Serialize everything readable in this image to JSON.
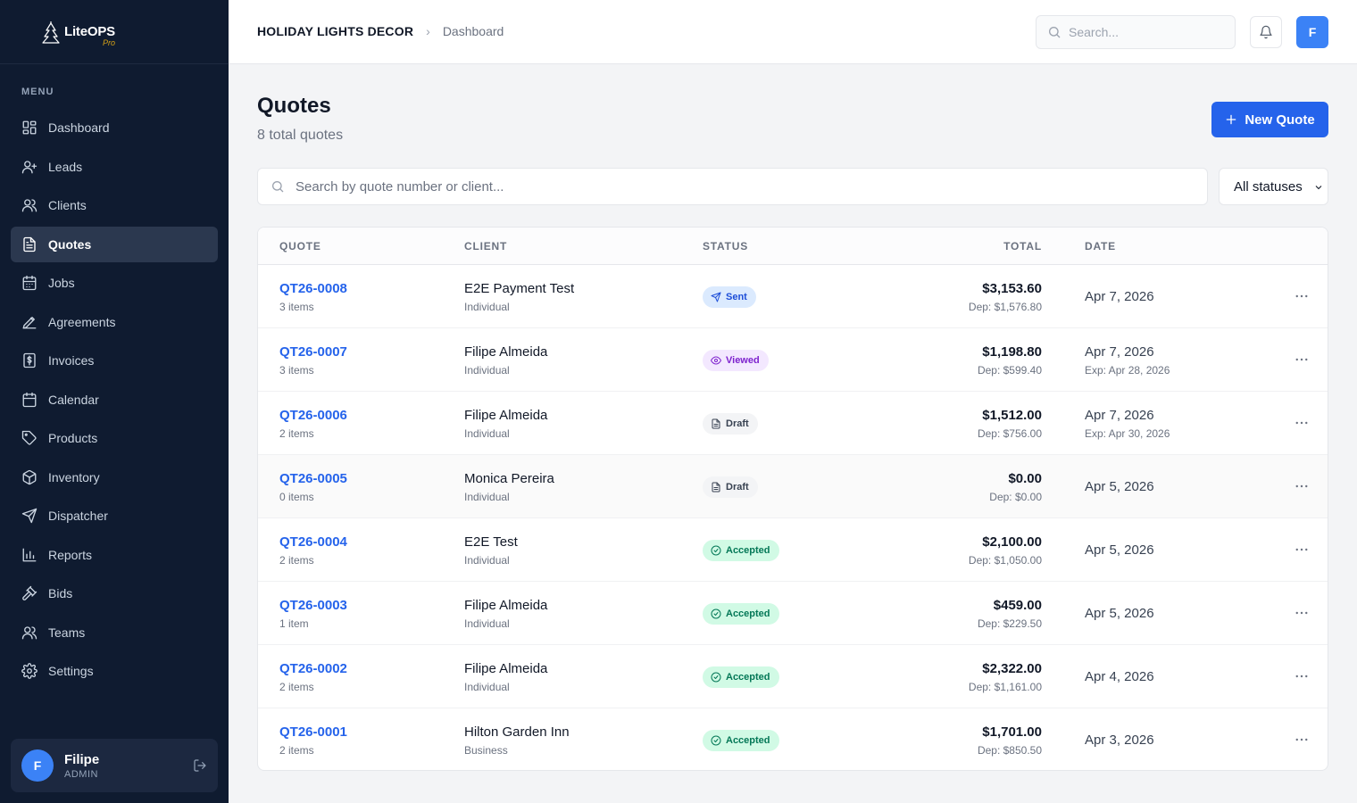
{
  "brand": {
    "name": "LiteOPS",
    "tier": "Pro"
  },
  "sidebar": {
    "menu_label": "MENU",
    "items": [
      {
        "label": "Dashboard",
        "icon": "dashboard-icon"
      },
      {
        "label": "Leads",
        "icon": "user-plus-icon"
      },
      {
        "label": "Clients",
        "icon": "users-icon"
      },
      {
        "label": "Quotes",
        "icon": "file-text-icon",
        "active": true
      },
      {
        "label": "Jobs",
        "icon": "calendar-icon"
      },
      {
        "label": "Agreements",
        "icon": "signature-icon"
      },
      {
        "label": "Invoices",
        "icon": "dollar-receipt-icon"
      },
      {
        "label": "Calendar",
        "icon": "calendar-icon"
      },
      {
        "label": "Products",
        "icon": "tag-icon"
      },
      {
        "label": "Inventory",
        "icon": "box-icon"
      },
      {
        "label": "Dispatcher",
        "icon": "send-icon"
      },
      {
        "label": "Reports",
        "icon": "bar-chart-icon"
      },
      {
        "label": "Bids",
        "icon": "gavel-icon"
      },
      {
        "label": "Teams",
        "icon": "users-icon"
      },
      {
        "label": "Settings",
        "icon": "gear-icon"
      }
    ],
    "user": {
      "initial": "F",
      "name": "Filipe",
      "role": "ADMIN"
    }
  },
  "header": {
    "company": "HOLIDAY LIGHTS DECOR",
    "separator": "›",
    "page": "Dashboard",
    "search_placeholder": "Search...",
    "avatar_initial": "F"
  },
  "main": {
    "title": "Quotes",
    "subtitle": "8 total quotes",
    "new_button": "New Quote",
    "search_placeholder": "Search by quote number or client...",
    "status_filter": "All statuses"
  },
  "table": {
    "columns": {
      "quote": "QUOTE",
      "client": "CLIENT",
      "status": "STATUS",
      "total": "TOTAL",
      "date": "DATE"
    },
    "rows": [
      {
        "number": "QT26-0008",
        "items": "3 items",
        "client": "E2E Payment Test",
        "client_type": "Individual",
        "status": "Sent",
        "status_kind": "sent",
        "total": "$3,153.60",
        "deposit": "Dep: $1,576.80",
        "date": "Apr 7, 2026",
        "expires": ""
      },
      {
        "number": "QT26-0007",
        "items": "3 items",
        "client": "Filipe Almeida",
        "client_type": "Individual",
        "status": "Viewed",
        "status_kind": "viewed",
        "total": "$1,198.80",
        "deposit": "Dep: $599.40",
        "date": "Apr 7, 2026",
        "expires": "Exp: Apr 28, 2026"
      },
      {
        "number": "QT26-0006",
        "items": "2 items",
        "client": "Filipe Almeida",
        "client_type": "Individual",
        "status": "Draft",
        "status_kind": "draft",
        "total": "$1,512.00",
        "deposit": "Dep: $756.00",
        "date": "Apr 7, 2026",
        "expires": "Exp: Apr 30, 2026"
      },
      {
        "number": "QT26-0005",
        "items": "0 items",
        "client": "Monica Pereira",
        "client_type": "Individual",
        "status": "Draft",
        "status_kind": "draft",
        "total": "$0.00",
        "deposit": "Dep: $0.00",
        "date": "Apr 5, 2026",
        "expires": ""
      },
      {
        "number": "QT26-0004",
        "items": "2 items",
        "client": "E2E Test",
        "client_type": "Individual",
        "status": "Accepted",
        "status_kind": "accepted",
        "total": "$2,100.00",
        "deposit": "Dep: $1,050.00",
        "date": "Apr 5, 2026",
        "expires": ""
      },
      {
        "number": "QT26-0003",
        "items": "1 item",
        "client": "Filipe Almeida",
        "client_type": "Individual",
        "status": "Accepted",
        "status_kind": "accepted",
        "total": "$459.00",
        "deposit": "Dep: $229.50",
        "date": "Apr 5, 2026",
        "expires": ""
      },
      {
        "number": "QT26-0002",
        "items": "2 items",
        "client": "Filipe Almeida",
        "client_type": "Individual",
        "status": "Accepted",
        "status_kind": "accepted",
        "total": "$2,322.00",
        "deposit": "Dep: $1,161.00",
        "date": "Apr 4, 2026",
        "expires": ""
      },
      {
        "number": "QT26-0001",
        "items": "2 items",
        "client": "Hilton Garden Inn",
        "client_type": "Business",
        "status": "Accepted",
        "status_kind": "accepted",
        "total": "$1,701.00",
        "deposit": "Dep: $850.50",
        "date": "Apr 3, 2026",
        "expires": ""
      }
    ]
  },
  "colors": {
    "sidebar_bg": "#0f1b30",
    "accent": "#2563eb",
    "sent": "#1d4ed8",
    "viewed": "#7e22ce",
    "accepted": "#047857"
  }
}
